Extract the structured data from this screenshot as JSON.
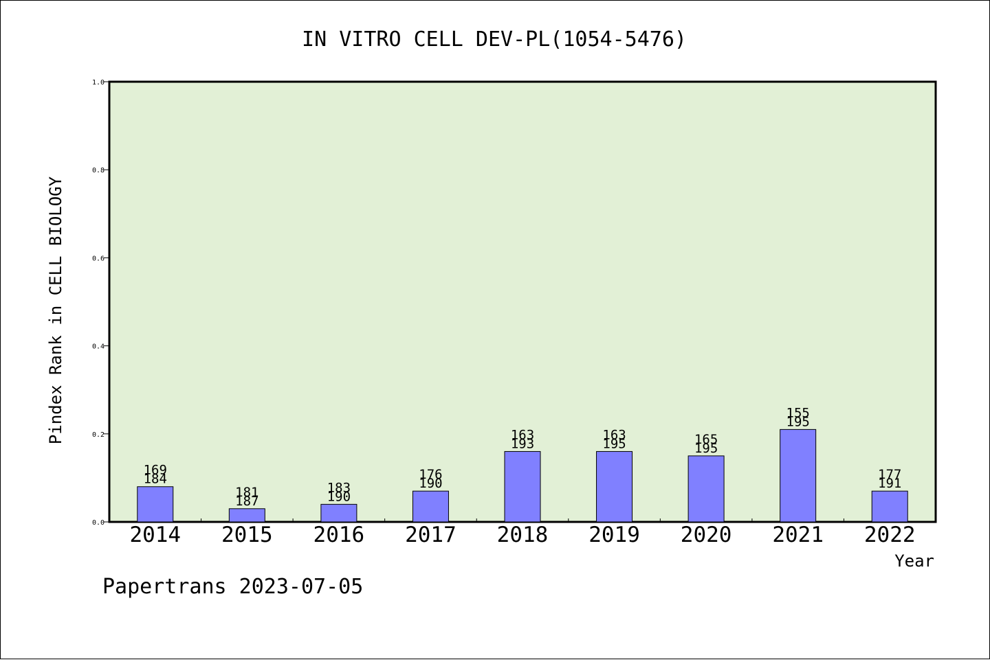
{
  "chart_data": {
    "type": "bar",
    "title": "IN VITRO CELL DEV-PL(1054-5476)",
    "xlabel": "Year",
    "ylabel": "Pindex Rank in CELL BIOLOGY",
    "categories": [
      "2014",
      "2015",
      "2016",
      "2017",
      "2018",
      "2019",
      "2020",
      "2021",
      "2022"
    ],
    "values": [
      0.08,
      0.03,
      0.04,
      0.07,
      0.16,
      0.16,
      0.15,
      0.21,
      0.07
    ],
    "rank_labels": [
      "169",
      "181",
      "183",
      "176",
      "163",
      "163",
      "165",
      "155",
      "177"
    ],
    "total_labels": [
      "184",
      "187",
      "190",
      "190",
      "193",
      "195",
      "195",
      "195",
      "191"
    ],
    "ylim": [
      0,
      1.0
    ],
    "yticks": [
      "0.0",
      "0.2",
      "0.4",
      "0.6",
      "0.8",
      "1.0"
    ],
    "grid": false,
    "legend": "none",
    "plot_background": "#e2f0d6",
    "bar_color": "#8080ff"
  },
  "footer": "Papertrans 2023-07-05"
}
